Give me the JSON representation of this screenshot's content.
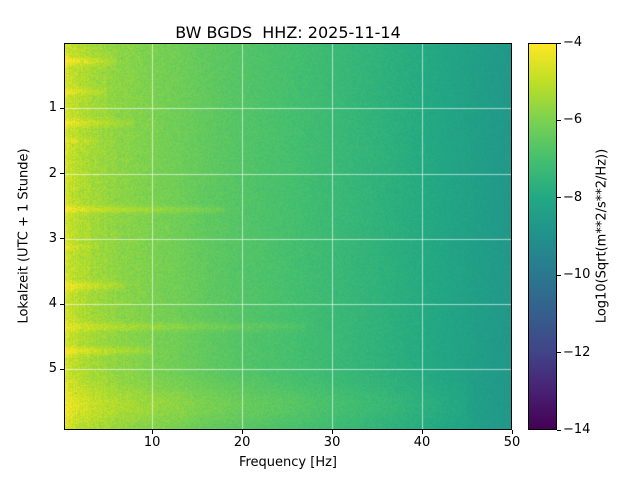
{
  "figure": {
    "background": "#ffffff"
  },
  "chart_data": {
    "type": "heatmap",
    "title": "BW BGDS  HHZ: 2025-11-14",
    "xlabel": "Frequency [Hz]",
    "ylabel": "Lokalzeit (UTC + 1 Stunde)",
    "xlim": [
      0.2,
      50
    ],
    "ylim": [
      0,
      5.93
    ],
    "x_ticks": [
      10,
      20,
      30,
      40,
      50
    ],
    "x_tick_labels": [
      "10",
      "20",
      "30",
      "40",
      "50"
    ],
    "y_ticks": [
      1,
      2,
      3,
      4,
      5
    ],
    "y_tick_labels": [
      "1",
      "2",
      "3",
      "4",
      "5"
    ],
    "grid": true,
    "grid_color": "rgba(255,255,255,0.6)",
    "colorbar": {
      "label": "Log10(Sqrt(m**2/s**2/Hz))",
      "tick_values": [
        -4,
        -6,
        -8,
        -10,
        -12,
        -14
      ],
      "tick_labels": [
        "−4",
        "−6",
        "−8",
        "−10",
        "−12",
        "−14"
      ],
      "clim_min": -14,
      "clim_max": -4,
      "colormap": "viridis",
      "colormap_stops": [
        "#440154",
        "#482173",
        "#414487",
        "#355f8d",
        "#2a788e",
        "#21918c",
        "#22a884",
        "#44bf70",
        "#7ad151",
        "#bddf26",
        "#fde725"
      ]
    },
    "background_profile": {
      "freqs": [
        0.2,
        0.6,
        1,
        2,
        3,
        4,
        6,
        8,
        10,
        13,
        16,
        20,
        25,
        30,
        35,
        40,
        45,
        50
      ],
      "values": [
        -4.6,
        -4.8,
        -4.95,
        -5.15,
        -5.3,
        -5.45,
        -5.7,
        -5.85,
        -6.0,
        -6.2,
        -6.45,
        -6.7,
        -6.95,
        -7.25,
        -7.55,
        -7.9,
        -8.3,
        -8.7
      ]
    },
    "noise": {
      "base": 0.2,
      "low_freq_extra": 0.35,
      "low_freq_scale": 9
    },
    "streaks": [
      {
        "time": 0.28,
        "fmax": 6,
        "amp": 0.85,
        "width": 0.07
      },
      {
        "time": 0.75,
        "fmax": 5,
        "amp": 0.6,
        "width": 0.05
      },
      {
        "time": 1.22,
        "fmax": 8,
        "amp": 0.7,
        "width": 0.06
      },
      {
        "time": 1.5,
        "fmax": 4,
        "amp": 0.5,
        "width": 0.04
      },
      {
        "time": 2.55,
        "fmax": 18,
        "amp": 0.75,
        "width": 0.05
      },
      {
        "time": 3.12,
        "fmax": 4,
        "amp": 0.45,
        "width": 0.04
      },
      {
        "time": 3.72,
        "fmax": 7,
        "amp": 0.85,
        "width": 0.06
      },
      {
        "time": 4.35,
        "fmax": 27,
        "amp": 0.6,
        "width": 0.06
      },
      {
        "time": 4.72,
        "fmax": 10,
        "amp": 0.8,
        "width": 0.06
      },
      {
        "time": 5.55,
        "fmax": 45,
        "amp": 0.55,
        "width": 0.3
      }
    ]
  }
}
